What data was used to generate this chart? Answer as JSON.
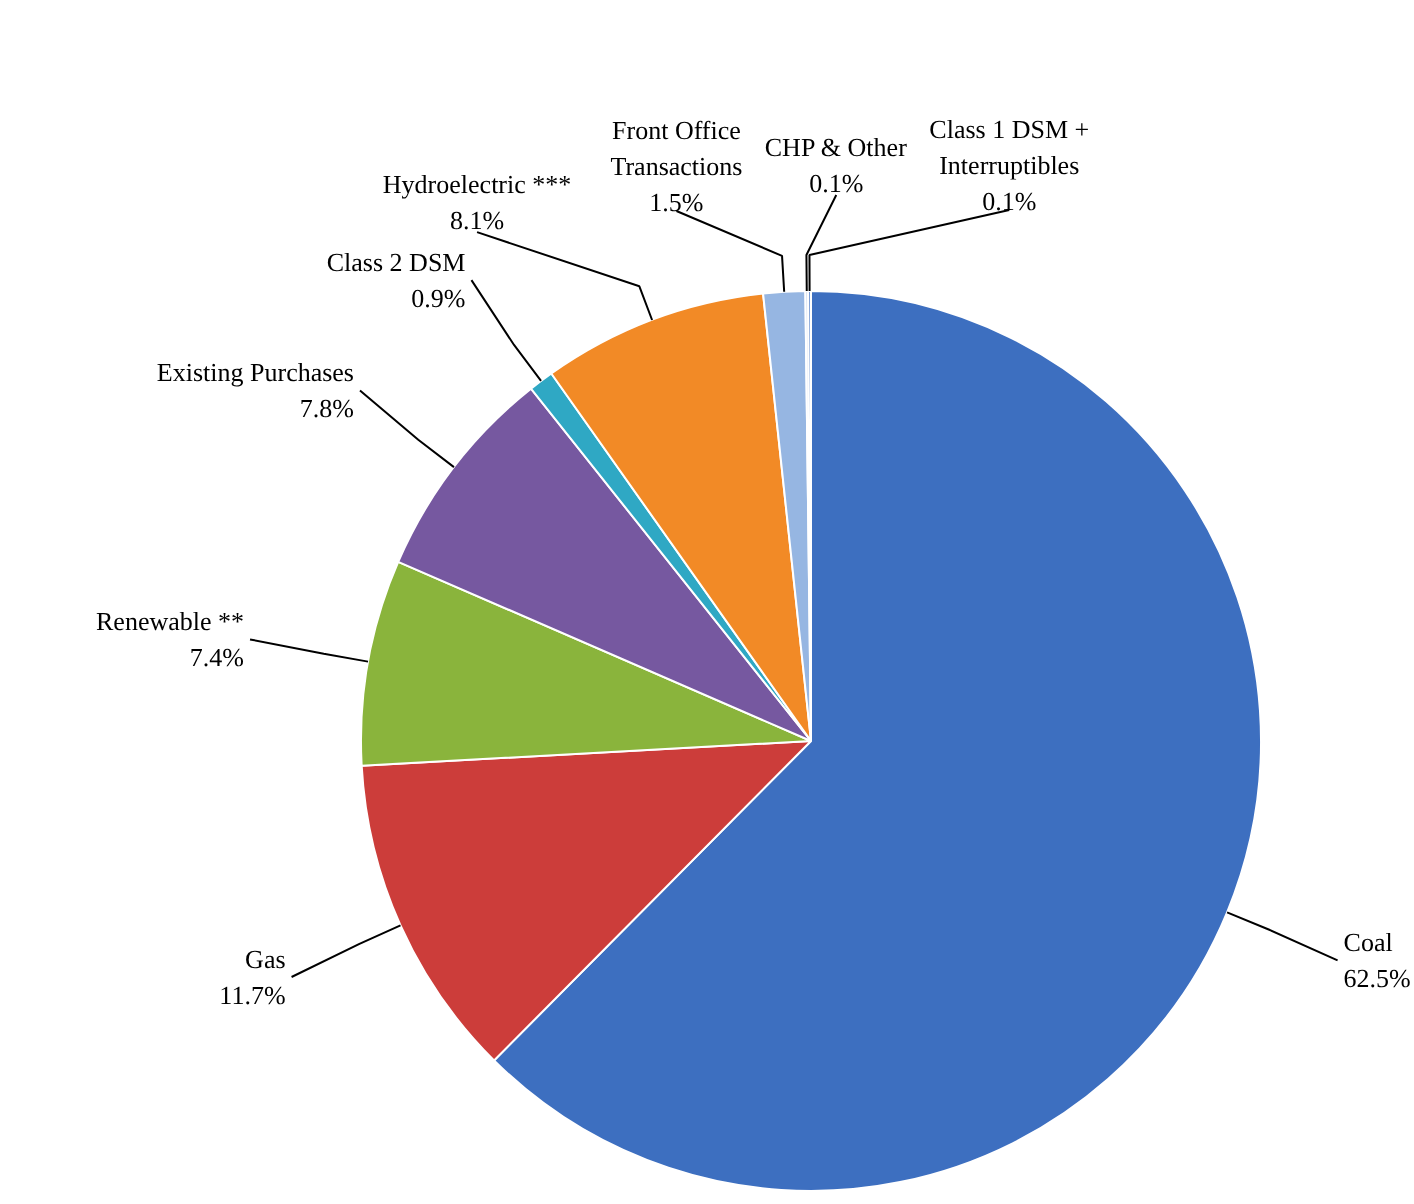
{
  "chart_data": {
    "type": "pie",
    "categories": [
      "Coal",
      "Gas",
      "Renewable **",
      "Existing Purchases",
      "Class 2 DSM",
      "Hydroelectric ***",
      "Front Office\nTransactions",
      "CHP & Other",
      "Class 1 DSM +\nInterruptibles"
    ],
    "values": [
      62.5,
      11.7,
      7.4,
      7.8,
      0.9,
      8.1,
      1.5,
      0.1,
      0.1
    ],
    "colors": [
      "#3d6fc0",
      "#cc3d3a",
      "#8ab43c",
      "#7658a0",
      "#2fa8c4",
      "#f28a26",
      "#96b6e2",
      "#c9d6ea",
      "#5b84c8"
    ],
    "value_labels": [
      "62.5%",
      "11.7%",
      "7.4%",
      "7.8%",
      "0.9%",
      "8.1%",
      "1.5%",
      "0.1%",
      "0.1%"
    ]
  }
}
